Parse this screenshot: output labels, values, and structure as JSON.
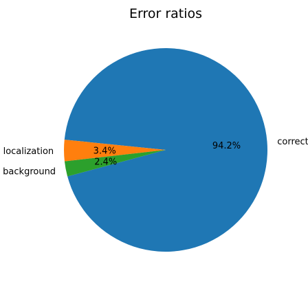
{
  "chart_data": {
    "type": "pie",
    "title": "Error ratios",
    "slices": [
      {
        "label": "correct",
        "value": 94.2,
        "pct_label": "94.2%",
        "color": "#1f77b4"
      },
      {
        "label": "localization",
        "value": 3.4,
        "pct_label": "3.4%",
        "color": "#ff7f0e"
      },
      {
        "label": "background",
        "value": 2.4,
        "pct_label": "2.4%",
        "color": "#2ca02c"
      }
    ]
  }
}
